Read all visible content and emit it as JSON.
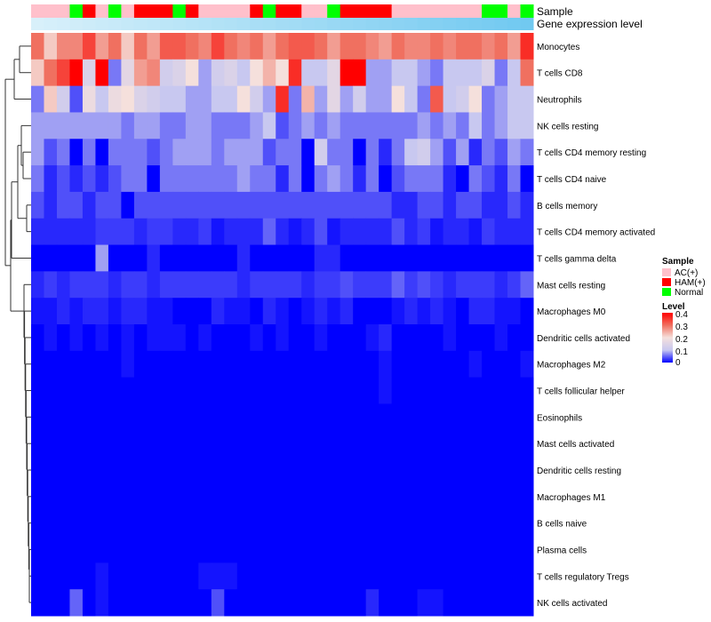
{
  "chart_data": {
    "type": "heatmap",
    "annotation_tracks": [
      "Sample",
      "Gene expression level"
    ],
    "rows": [
      "Monocytes",
      "T cells CD8",
      "Neutrophils",
      "NK cells resting",
      "T cells CD4 memory resting",
      "T cells CD4 naive",
      "B cells memory",
      "T cells CD4 memory activated",
      "T cells gamma delta",
      "Mast cells resting",
      "Macrophages M0",
      "Dendritic cells activated",
      "Macrophages M2",
      "T cells follicular helper",
      "Eosinophils",
      "Mast cells activated",
      "Dendritic cells resting",
      "Macrophages M1",
      "B cells naive",
      "Plasma cells",
      "T cells regulatory  Tregs",
      "NK cells activated"
    ],
    "sample_groups": [
      "AC(+)",
      "AC(+)",
      "AC(+)",
      "Normal",
      "HAM(+)",
      "AC(+)",
      "Normal",
      "AC(+)",
      "HAM(+)",
      "HAM(+)",
      "HAM(+)",
      "Normal",
      "HAM(+)",
      "AC(+)",
      "AC(+)",
      "AC(+)",
      "AC(+)",
      "HAM(+)",
      "Normal",
      "HAM(+)",
      "HAM(+)",
      "AC(+)",
      "AC(+)",
      "Normal",
      "HAM(+)",
      "HAM(+)",
      "HAM(+)",
      "HAM(+)",
      "AC(+)",
      "AC(+)",
      "AC(+)",
      "AC(+)",
      "AC(+)",
      "AC(+)",
      "AC(+)",
      "Normal",
      "Normal",
      "AC(+)",
      "Normal"
    ],
    "expression_level": [
      0,
      0.03,
      0.05,
      0.08,
      0.1,
      0.13,
      0.15,
      0.18,
      0.21,
      0.23,
      0.26,
      0.28,
      0.31,
      0.33,
      0.36,
      0.38,
      0.41,
      0.44,
      0.46,
      0.49,
      0.51,
      0.54,
      0.56,
      0.59,
      0.62,
      0.64,
      0.67,
      0.69,
      0.72,
      0.74,
      0.77,
      0.79,
      0.82,
      0.85,
      0.87,
      0.9,
      0.92,
      0.95,
      0.97
    ],
    "values": [
      [
        0.3,
        0.22,
        0.28,
        0.28,
        0.34,
        0.26,
        0.3,
        0.22,
        0.3,
        0.26,
        0.32,
        0.32,
        0.3,
        0.28,
        0.34,
        0.3,
        0.28,
        0.3,
        0.26,
        0.3,
        0.32,
        0.32,
        0.3,
        0.26,
        0.3,
        0.3,
        0.28,
        0.26,
        0.3,
        0.28,
        0.28,
        0.3,
        0.28,
        0.3,
        0.3,
        0.28,
        0.3,
        0.26,
        0.36
      ],
      [
        0.22,
        0.3,
        0.34,
        0.4,
        0.14,
        0.4,
        0.06,
        0.16,
        0.26,
        0.28,
        0.12,
        0.14,
        0.2,
        0.08,
        0.12,
        0.14,
        0.1,
        0.2,
        0.24,
        0.2,
        0.36,
        0.1,
        0.1,
        0.16,
        0.4,
        0.4,
        0.08,
        0.08,
        0.1,
        0.1,
        0.08,
        0.06,
        0.1,
        0.1,
        0.1,
        0.14,
        0.06,
        0.1,
        0.3
      ],
      [
        0.06,
        0.22,
        0.12,
        0.04,
        0.18,
        0.1,
        0.18,
        0.2,
        0.14,
        0.12,
        0.1,
        0.1,
        0.08,
        0.08,
        0.1,
        0.1,
        0.2,
        0.12,
        0.08,
        0.36,
        0.06,
        0.24,
        0.08,
        0.16,
        0.08,
        0.12,
        0.08,
        0.08,
        0.2,
        0.1,
        0.06,
        0.32,
        0.1,
        0.12,
        0.2,
        0.06,
        0.08,
        0.1,
        0.1
      ],
      [
        0.08,
        0.08,
        0.08,
        0.08,
        0.08,
        0.08,
        0.08,
        0.06,
        0.08,
        0.08,
        0.06,
        0.06,
        0.08,
        0.08,
        0.06,
        0.06,
        0.06,
        0.08,
        0.1,
        0.04,
        0.06,
        0.08,
        0.06,
        0.08,
        0.06,
        0.06,
        0.06,
        0.06,
        0.06,
        0.06,
        0.08,
        0.06,
        0.08,
        0.06,
        0.1,
        0.06,
        0.08,
        0.1,
        0.1
      ],
      [
        0.08,
        0.04,
        0.06,
        0.0,
        0.06,
        0.0,
        0.06,
        0.06,
        0.06,
        0.04,
        0.06,
        0.08,
        0.08,
        0.08,
        0.06,
        0.08,
        0.08,
        0.08,
        0.04,
        0.06,
        0.06,
        0.0,
        0.12,
        0.06,
        0.06,
        0.0,
        0.06,
        0.02,
        0.06,
        0.1,
        0.12,
        0.08,
        0.04,
        0.08,
        0.02,
        0.06,
        0.04,
        0.08,
        0.06
      ],
      [
        0.06,
        0.02,
        0.04,
        0.02,
        0.04,
        0.02,
        0.04,
        0.06,
        0.06,
        0.0,
        0.06,
        0.06,
        0.06,
        0.06,
        0.06,
        0.06,
        0.08,
        0.06,
        0.06,
        0.02,
        0.06,
        0.0,
        0.06,
        0.08,
        0.06,
        0.02,
        0.06,
        0.0,
        0.04,
        0.06,
        0.06,
        0.06,
        0.02,
        0.0,
        0.06,
        0.04,
        0.02,
        0.06,
        0.0
      ],
      [
        0.04,
        0.02,
        0.04,
        0.04,
        0.02,
        0.04,
        0.04,
        0.0,
        0.04,
        0.04,
        0.04,
        0.04,
        0.04,
        0.04,
        0.04,
        0.04,
        0.04,
        0.04,
        0.04,
        0.04,
        0.04,
        0.04,
        0.04,
        0.04,
        0.04,
        0.04,
        0.04,
        0.04,
        0.02,
        0.02,
        0.04,
        0.04,
        0.02,
        0.04,
        0.04,
        0.02,
        0.02,
        0.04,
        0.02
      ],
      [
        0.02,
        0.02,
        0.02,
        0.02,
        0.02,
        0.03,
        0.03,
        0.03,
        0.02,
        0.03,
        0.03,
        0.02,
        0.02,
        0.03,
        0.01,
        0.02,
        0.02,
        0.02,
        0.05,
        0.02,
        0.01,
        0.02,
        0.04,
        0.01,
        0.02,
        0.02,
        0.02,
        0.02,
        0.04,
        0.02,
        0.03,
        0.01,
        0.02,
        0.02,
        0.01,
        0.03,
        0.02,
        0.02,
        0.02
      ],
      [
        0.0,
        0.0,
        0.0,
        0.0,
        0.0,
        0.08,
        0.0,
        0.0,
        0.0,
        0.02,
        0.0,
        0.0,
        0.0,
        0.0,
        0.0,
        0.0,
        0.02,
        0.0,
        0.0,
        0.0,
        0.0,
        0.0,
        0.02,
        0.02,
        0.0,
        0.0,
        0.0,
        0.0,
        0.0,
        0.0,
        0.0,
        0.0,
        0.0,
        0.0,
        0.0,
        0.0,
        0.0,
        0.0,
        0.0
      ],
      [
        0.02,
        0.03,
        0.02,
        0.03,
        0.03,
        0.03,
        0.02,
        0.03,
        0.03,
        0.02,
        0.03,
        0.03,
        0.03,
        0.03,
        0.03,
        0.03,
        0.02,
        0.03,
        0.03,
        0.03,
        0.03,
        0.02,
        0.03,
        0.03,
        0.04,
        0.03,
        0.03,
        0.03,
        0.05,
        0.03,
        0.04,
        0.03,
        0.02,
        0.03,
        0.03,
        0.03,
        0.02,
        0.03,
        0.05
      ],
      [
        0.01,
        0.01,
        0.02,
        0.01,
        0.02,
        0.02,
        0.01,
        0.02,
        0.02,
        0.01,
        0.01,
        0.0,
        0.0,
        0.0,
        0.02,
        0.01,
        0.01,
        0.0,
        0.02,
        0.01,
        0.0,
        0.01,
        0.02,
        0.01,
        0.02,
        0.0,
        0.0,
        0.0,
        0.01,
        0.02,
        0.01,
        0.02,
        0.01,
        0.0,
        0.02,
        0.02,
        0.01,
        0.01,
        0.0
      ],
      [
        0.0,
        0.01,
        0.0,
        0.01,
        0.0,
        0.01,
        0.0,
        0.01,
        0.0,
        0.01,
        0.01,
        0.01,
        0.0,
        0.01,
        0.0,
        0.0,
        0.0,
        0.01,
        0.0,
        0.01,
        0.0,
        0.0,
        0.01,
        0.0,
        0.0,
        0.0,
        0.01,
        0.02,
        0.0,
        0.0,
        0.0,
        0.0,
        0.01,
        0.0,
        0.0,
        0.0,
        0.01,
        0.0,
        0.0
      ],
      [
        0.0,
        0.0,
        0.0,
        0.0,
        0.0,
        0.0,
        0.0,
        0.01,
        0.0,
        0.0,
        0.0,
        0.0,
        0.0,
        0.0,
        0.0,
        0.0,
        0.0,
        0.0,
        0.0,
        0.0,
        0.0,
        0.0,
        0.0,
        0.0,
        0.0,
        0.0,
        0.0,
        0.01,
        0.0,
        0.0,
        0.0,
        0.0,
        0.0,
        0.0,
        0.01,
        0.0,
        0.0,
        0.0,
        0.01
      ],
      [
        0.0,
        0.0,
        0.0,
        0.0,
        0.0,
        0.0,
        0.0,
        0.0,
        0.0,
        0.0,
        0.0,
        0.0,
        0.0,
        0.0,
        0.0,
        0.0,
        0.0,
        0.0,
        0.0,
        0.0,
        0.0,
        0.0,
        0.0,
        0.0,
        0.0,
        0.0,
        0.0,
        0.01,
        0.0,
        0.0,
        0.0,
        0.0,
        0.0,
        0.0,
        0.0,
        0.0,
        0.0,
        0.0,
        0.0
      ],
      [
        0,
        0,
        0,
        0,
        0,
        0,
        0,
        0,
        0,
        0,
        0,
        0,
        0,
        0,
        0,
        0,
        0,
        0,
        0,
        0,
        0,
        0,
        0,
        0,
        0,
        0,
        0,
        0,
        0,
        0,
        0,
        0,
        0,
        0,
        0,
        0,
        0,
        0,
        0
      ],
      [
        0,
        0,
        0,
        0,
        0,
        0,
        0,
        0,
        0,
        0,
        0,
        0,
        0,
        0,
        0,
        0,
        0,
        0,
        0,
        0,
        0,
        0,
        0,
        0,
        0,
        0,
        0,
        0,
        0,
        0,
        0,
        0,
        0,
        0,
        0,
        0,
        0,
        0,
        0
      ],
      [
        0,
        0,
        0,
        0,
        0,
        0,
        0,
        0,
        0,
        0,
        0,
        0,
        0,
        0,
        0,
        0,
        0,
        0,
        0,
        0,
        0,
        0,
        0,
        0,
        0,
        0,
        0,
        0,
        0,
        0,
        0,
        0,
        0,
        0,
        0,
        0,
        0,
        0,
        0
      ],
      [
        0,
        0,
        0,
        0,
        0,
        0,
        0,
        0,
        0,
        0,
        0,
        0,
        0,
        0,
        0,
        0,
        0,
        0,
        0,
        0,
        0,
        0,
        0,
        0,
        0,
        0,
        0,
        0,
        0,
        0,
        0,
        0,
        0,
        0,
        0,
        0,
        0,
        0,
        0
      ],
      [
        0,
        0,
        0,
        0,
        0,
        0,
        0,
        0,
        0,
        0,
        0,
        0,
        0,
        0,
        0,
        0,
        0,
        0,
        0,
        0,
        0,
        0,
        0,
        0,
        0,
        0,
        0,
        0,
        0,
        0,
        0,
        0,
        0,
        0,
        0,
        0,
        0,
        0,
        0
      ],
      [
        0,
        0,
        0,
        0,
        0,
        0,
        0,
        0,
        0,
        0,
        0,
        0,
        0,
        0,
        0,
        0,
        0,
        0,
        0,
        0,
        0,
        0,
        0,
        0,
        0,
        0,
        0,
        0,
        0,
        0,
        0,
        0,
        0,
        0,
        0,
        0,
        0,
        0,
        0
      ],
      [
        0.0,
        0.0,
        0.0,
        0.0,
        0.0,
        0.01,
        0.0,
        0.0,
        0.0,
        0.0,
        0.0,
        0.0,
        0.0,
        0.01,
        0.01,
        0.01,
        0.0,
        0.0,
        0.0,
        0.0,
        0.0,
        0.0,
        0.0,
        0.0,
        0.0,
        0.0,
        0.0,
        0.0,
        0.0,
        0.0,
        0.0,
        0.0,
        0.0,
        0.0,
        0.0,
        0.0,
        0.0,
        0.0,
        0.0
      ],
      [
        0.0,
        0.0,
        0.0,
        0.05,
        0.0,
        0.01,
        0.0,
        0.0,
        0.0,
        0.0,
        0.0,
        0.0,
        0.0,
        0.0,
        0.04,
        0.0,
        0.0,
        0.0,
        0.0,
        0.0,
        0.0,
        0.0,
        0.0,
        0.0,
        0.0,
        0.0,
        0.02,
        0.0,
        0.0,
        0.0,
        0.01,
        0.01,
        0.0,
        0.0,
        0.0,
        0.0,
        0.0,
        0.0,
        0.0
      ]
    ],
    "color_scale": {
      "stops": [
        0,
        0.1,
        0.2,
        0.3,
        0.4
      ],
      "colors": [
        "#0000ff",
        "#c8c8f0",
        "#f5e0dc",
        "#f07060",
        "#ff0000"
      ]
    },
    "sample_colors": {
      "AC(+)": "#ffc0cb",
      "HAM(+)": "#ff0000",
      "Normal": "#00ff00"
    },
    "expression_colors": [
      "#d8f0fa",
      "#6ec8f0"
    ],
    "legend": {
      "sample": {
        "title": "Sample",
        "entries": [
          "AC(+)",
          "HAM(+)",
          "Normal"
        ]
      },
      "level": {
        "title": "Level",
        "ticks": [
          "0.4",
          "0.3",
          "0.2",
          "0.1",
          "0"
        ]
      }
    }
  }
}
